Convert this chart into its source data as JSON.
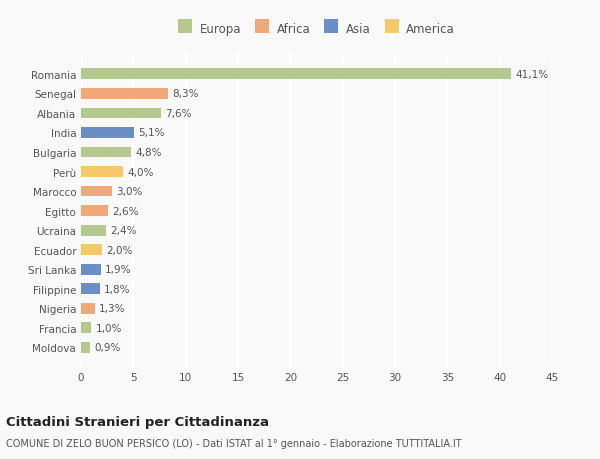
{
  "categories": [
    "Moldova",
    "Francia",
    "Nigeria",
    "Filippine",
    "Sri Lanka",
    "Ecuador",
    "Ucraina",
    "Egitto",
    "Marocco",
    "Perù",
    "Bulgaria",
    "India",
    "Albania",
    "Senegal",
    "Romania"
  ],
  "values": [
    0.9,
    1.0,
    1.3,
    1.8,
    1.9,
    2.0,
    2.4,
    2.6,
    3.0,
    4.0,
    4.8,
    5.1,
    7.6,
    8.3,
    41.1
  ],
  "labels": [
    "0,9%",
    "1,0%",
    "1,3%",
    "1,8%",
    "1,9%",
    "2,0%",
    "2,4%",
    "2,6%",
    "3,0%",
    "4,0%",
    "4,8%",
    "5,1%",
    "7,6%",
    "8,3%",
    "41,1%"
  ],
  "colors": [
    "#b5c98e",
    "#b5c98e",
    "#f0a87a",
    "#6b8fc4",
    "#6b8fc4",
    "#f5c96a",
    "#b5c98e",
    "#f0a87a",
    "#f0a87a",
    "#f5c96a",
    "#b5c98e",
    "#6b8fc4",
    "#b5c98e",
    "#f0a87a",
    "#b5c98e"
  ],
  "legend_labels": [
    "Europa",
    "Africa",
    "Asia",
    "America"
  ],
  "legend_colors": [
    "#b5c98e",
    "#f0a87a",
    "#6b8fc4",
    "#f5c96a"
  ],
  "title": "Cittadini Stranieri per Cittadinanza",
  "subtitle": "COMUNE DI ZELO BUON PERSICO (LO) - Dati ISTAT al 1° gennaio - Elaborazione TUTTITALIA.IT",
  "xlim": [
    0,
    45
  ],
  "xticks": [
    0,
    5,
    10,
    15,
    20,
    25,
    30,
    35,
    40,
    45
  ],
  "background_color": "#f9f9f9",
  "grid_color": "#e8e8e8",
  "bar_height": 0.55
}
